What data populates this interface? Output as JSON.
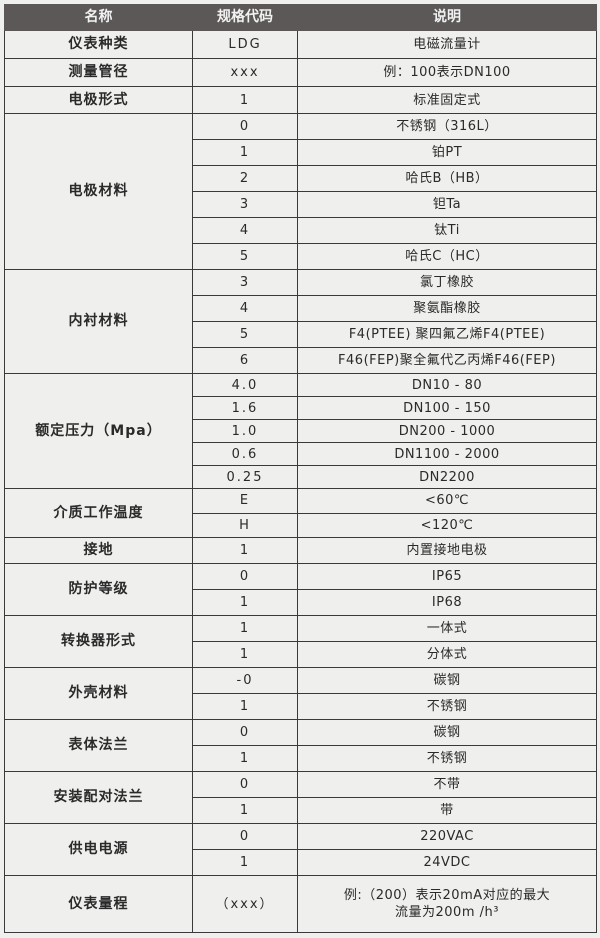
{
  "headers": [
    "名称",
    "规格代码",
    "说明"
  ],
  "groups": [
    {
      "name": "仪表种类",
      "rows": [
        {
          "code": "LDG",
          "desc": "电磁流量计"
        }
      ]
    },
    {
      "name": "测量管径",
      "rows": [
        {
          "code": "xxx",
          "desc": "例：100表示DN100"
        }
      ]
    },
    {
      "name": "电极形式",
      "rows": [
        {
          "code": "1",
          "desc": "标准固定式"
        }
      ]
    },
    {
      "name": "电极材料",
      "rows": [
        {
          "code": "0",
          "desc": "不锈钢（316L）"
        },
        {
          "code": "1",
          "desc": "铂PT"
        },
        {
          "code": "2",
          "desc": "哈氏B（HB）"
        },
        {
          "code": "3",
          "desc": "钽Ta"
        },
        {
          "code": "4",
          "desc": "钛Ti"
        },
        {
          "code": "5",
          "desc": "哈氏C（HC）"
        }
      ]
    },
    {
      "name": "内衬材料",
      "rows": [
        {
          "code": "3",
          "desc": "氯丁橡胶"
        },
        {
          "code": "4",
          "desc": "聚氨酯橡胶"
        },
        {
          "code": "5",
          "desc": "F4(PTEE) 聚四氟乙烯F4(PTEE)"
        },
        {
          "code": "6",
          "desc": "F46(FEP)聚全氟代乙丙烯F46(FEP)"
        }
      ]
    },
    {
      "name": "额定压力（Mpa）",
      "rows": [
        {
          "code": "4.0",
          "desc": "DN10 - 80"
        },
        {
          "code": "1.6",
          "desc": "DN100 - 150"
        },
        {
          "code": "1.0",
          "desc": "DN200 - 1000"
        },
        {
          "code": "0.6",
          "desc": "DN1100 - 2000"
        },
        {
          "code": "0.25",
          "desc": "DN2200"
        }
      ]
    },
    {
      "name": "介质工作温度",
      "rows": [
        {
          "code": "E",
          "desc": "<60℃"
        },
        {
          "code": "H",
          "desc": "<120℃"
        }
      ]
    },
    {
      "name": "接地",
      "rows": [
        {
          "code": "1",
          "desc": "内置接地电极"
        }
      ]
    },
    {
      "name": "防护等级",
      "rows": [
        {
          "code": "0",
          "desc": "IP65"
        },
        {
          "code": "1",
          "desc": "IP68"
        }
      ]
    },
    {
      "name": "转换器形式",
      "rows": [
        {
          "code": "1",
          "desc": "一体式"
        },
        {
          "code": "1",
          "desc": "分体式"
        }
      ]
    },
    {
      "name": "外壳材料",
      "rows": [
        {
          "code": "-0",
          "desc": "碳钢"
        },
        {
          "code": "1",
          "desc": "不锈钢"
        }
      ]
    },
    {
      "name": "表体法兰",
      "rows": [
        {
          "code": "0",
          "desc": "碳钢"
        },
        {
          "code": "1",
          "desc": "不锈钢"
        }
      ]
    },
    {
      "name": "安装配对法兰",
      "rows": [
        {
          "code": "0",
          "desc": "不带"
        },
        {
          "code": "1",
          "desc": "带"
        }
      ]
    },
    {
      "name": "供电电源",
      "rows": [
        {
          "code": "0",
          "desc": "220VAC"
        },
        {
          "code": "1",
          "desc": "24VDC"
        }
      ]
    },
    {
      "name": "仪表量程",
      "rows": [
        {
          "code": "（xxx）",
          "desc": "例:（200）表示20mA对应的最大\n流量为200m /h³"
        }
      ]
    }
  ]
}
